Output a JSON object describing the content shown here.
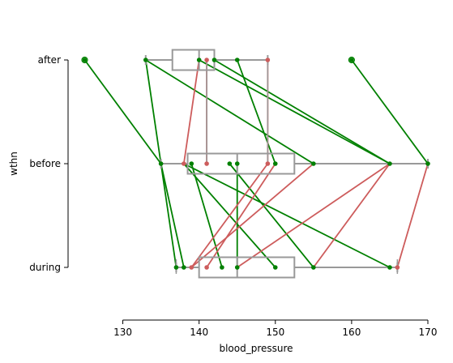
{
  "chart_data": {
    "type": "box+paired-lines",
    "xlabel": "blood_pressure",
    "ylabel": "wthn",
    "xlim": [
      125,
      170
    ],
    "xticks": [
      "130",
      "140",
      "150",
      "160",
      "170"
    ],
    "xtick_values": [
      130,
      140,
      150,
      160,
      170
    ],
    "categories": [
      "after",
      "before",
      "during"
    ],
    "colors": {
      "box": "#999999",
      "increase": "#008000",
      "decrease": "#cd5c5c",
      "outlier": "#008000"
    },
    "boxes": [
      {
        "category": "after",
        "whisker_low": 133,
        "q1": 136.5,
        "median": 140,
        "q3": 142,
        "whisker_high": 149
      },
      {
        "category": "before",
        "whisker_low": 135,
        "q1": 138.5,
        "median": 145,
        "q3": 152.5,
        "whisker_high": 170
      },
      {
        "category": "during",
        "whisker_low": 137,
        "q1": 140,
        "median": 145,
        "q3": 152.5,
        "whisker_high": 166
      }
    ],
    "outliers": [
      {
        "category": "after",
        "value": 125
      },
      {
        "category": "after",
        "value": 160
      }
    ],
    "points": [
      {
        "category": "after",
        "values": [
          125,
          133,
          140,
          141,
          142,
          145,
          149,
          160
        ]
      },
      {
        "category": "before",
        "values": [
          135,
          138,
          139,
          141,
          144,
          145,
          149,
          150,
          155,
          165,
          170
        ]
      },
      {
        "category": "during",
        "values": [
          137,
          138,
          139,
          141,
          143,
          145,
          150,
          155,
          165,
          166
        ]
      }
    ],
    "segments": [
      {
        "from": [
          "after",
          125
        ],
        "to": [
          "before",
          135
        ],
        "trend": "increase"
      },
      {
        "from": [
          "after",
          133
        ],
        "to": [
          "before",
          135
        ],
        "trend": "increase"
      },
      {
        "from": [
          "after",
          133
        ],
        "to": [
          "before",
          155
        ],
        "trend": "increase"
      },
      {
        "from": [
          "after",
          140
        ],
        "to": [
          "before",
          165
        ],
        "trend": "increase"
      },
      {
        "from": [
          "after",
          142
        ],
        "to": [
          "before",
          165
        ],
        "trend": "increase"
      },
      {
        "from": [
          "after",
          145
        ],
        "to": [
          "before",
          150
        ],
        "trend": "increase"
      },
      {
        "from": [
          "after",
          160
        ],
        "to": [
          "before",
          170
        ],
        "trend": "increase"
      },
      {
        "from": [
          "after",
          140
        ],
        "to": [
          "before",
          138
        ],
        "trend": "decrease"
      },
      {
        "from": [
          "after",
          141
        ],
        "to": [
          "before",
          141
        ],
        "trend": "decrease"
      },
      {
        "from": [
          "after",
          149
        ],
        "to": [
          "before",
          149
        ],
        "trend": "decrease"
      },
      {
        "from": [
          "before",
          135
        ],
        "to": [
          "during",
          137
        ],
        "trend": "increase"
      },
      {
        "from": [
          "before",
          135
        ],
        "to": [
          "during",
          138
        ],
        "trend": "increase"
      },
      {
        "from": [
          "before",
          139
        ],
        "to": [
          "during",
          143
        ],
        "trend": "increase"
      },
      {
        "from": [
          "before",
          138
        ],
        "to": [
          "during",
          150
        ],
        "trend": "increase"
      },
      {
        "from": [
          "before",
          138
        ],
        "to": [
          "during",
          165
        ],
        "trend": "increase"
      },
      {
        "from": [
          "before",
          144
        ],
        "to": [
          "during",
          155
        ],
        "trend": "increase"
      },
      {
        "from": [
          "before",
          145
        ],
        "to": [
          "during",
          145
        ],
        "trend": "increase"
      },
      {
        "from": [
          "before",
          170
        ],
        "to": [
          "during",
          166
        ],
        "trend": "decrease"
      },
      {
        "from": [
          "before",
          165
        ],
        "to": [
          "during",
          155
        ],
        "trend": "decrease"
      },
      {
        "from": [
          "before",
          165
        ],
        "to": [
          "during",
          145
        ],
        "trend": "decrease"
      },
      {
        "from": [
          "before",
          150
        ],
        "to": [
          "during",
          141
        ],
        "trend": "decrease"
      },
      {
        "from": [
          "before",
          149
        ],
        "to": [
          "during",
          139
        ],
        "trend": "decrease"
      },
      {
        "from": [
          "before",
          155
        ],
        "to": [
          "during",
          139
        ],
        "trend": "decrease"
      }
    ],
    "grid": false,
    "legend": "none"
  }
}
